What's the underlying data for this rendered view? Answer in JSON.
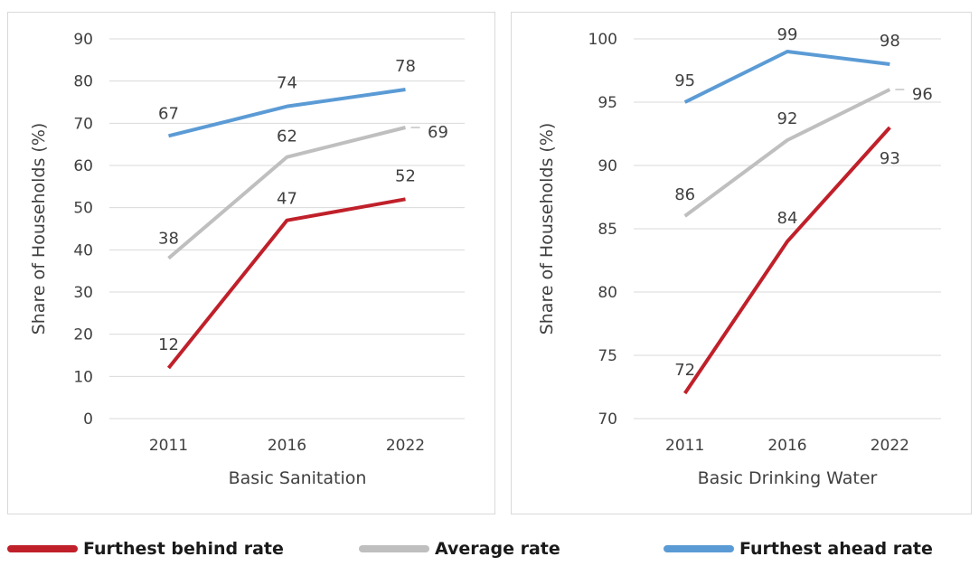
{
  "chart_data": [
    {
      "type": "line",
      "xlabel": "Basic Sanitation",
      "ylabel": "Share of Households (%)",
      "categories": [
        "2011",
        "2016",
        "2022"
      ],
      "ylim": [
        0,
        90
      ],
      "yticks": [
        0,
        10,
        20,
        30,
        40,
        50,
        60,
        70,
        80,
        90
      ],
      "grid": true,
      "series": [
        {
          "name": "Furthest behind rate",
          "color": "#c0202a",
          "values": [
            12,
            47,
            52
          ]
        },
        {
          "name": "Average rate",
          "color": "#bfbfbf",
          "values": [
            38,
            62,
            69
          ]
        },
        {
          "name": "Furthest ahead rate",
          "color": "#5b9bd5",
          "values": [
            67,
            74,
            78
          ]
        }
      ]
    },
    {
      "type": "line",
      "xlabel": "Basic Drinking Water",
      "ylabel": "Share of Households (%)",
      "categories": [
        "2011",
        "2016",
        "2022"
      ],
      "ylim": [
        70,
        100
      ],
      "yticks": [
        70,
        75,
        80,
        85,
        90,
        95,
        100
      ],
      "grid": true,
      "series": [
        {
          "name": "Furthest behind rate",
          "color": "#c0202a",
          "values": [
            72,
            84,
            93
          ]
        },
        {
          "name": "Average rate",
          "color": "#bfbfbf",
          "values": [
            86,
            92,
            96
          ]
        },
        {
          "name": "Furthest ahead rate",
          "color": "#5b9bd5",
          "values": [
            95,
            99,
            98
          ]
        }
      ]
    }
  ],
  "legend": {
    "placement": "bottom",
    "items": [
      {
        "label": "Furthest behind rate",
        "color": "#c0202a"
      },
      {
        "label": "Average rate",
        "color": "#bfbfbf"
      },
      {
        "label": "Furthest ahead rate",
        "color": "#5b9bd5"
      }
    ]
  }
}
